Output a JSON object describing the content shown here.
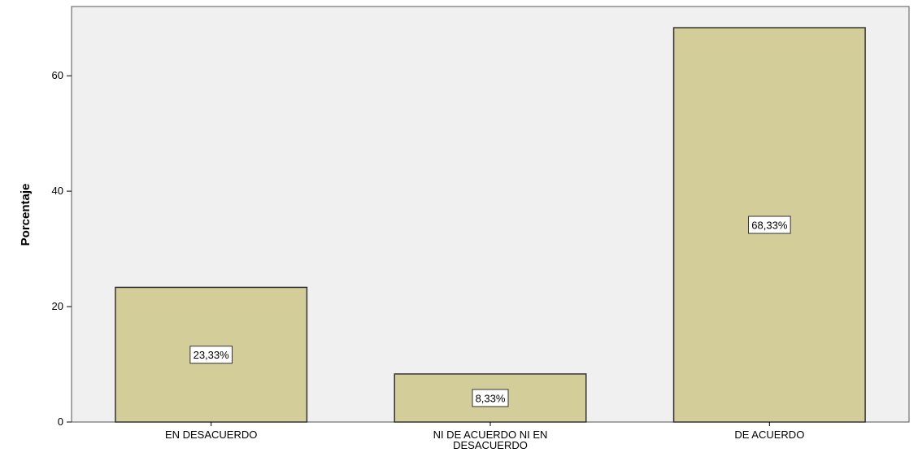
{
  "chart_data": {
    "type": "bar",
    "categories": [
      "EN DESACUERDO",
      "NI DE ACUERDO NI EN DESACUERDO",
      "DE ACUERDO"
    ],
    "category_label_lines": [
      [
        "EN DESACUERDO"
      ],
      [
        "NI DE ACUERDO NI EN",
        "DESACUERDO"
      ],
      [
        "DE ACUERDO"
      ]
    ],
    "values": [
      23.33,
      8.33,
      68.33
    ],
    "data_labels": [
      "23,33%",
      "8,33%",
      "68,33%"
    ],
    "title": "",
    "xlabel": "",
    "ylabel": "Porcentaje",
    "ylim": [
      0,
      72
    ],
    "yticks": [
      0,
      20,
      40,
      60
    ],
    "grid": false,
    "colors": {
      "bar_fill": "#d3cd99",
      "bar_stroke": "#333333",
      "plot_background": "#f0f0f0"
    }
  }
}
